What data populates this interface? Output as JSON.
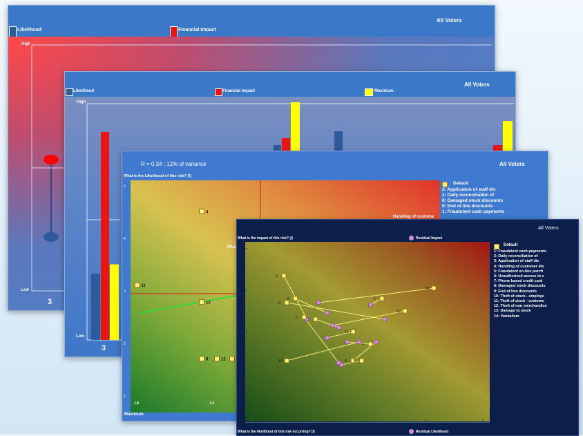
{
  "panel1": {
    "audience": "All Voters",
    "legend": [
      "Likelihood",
      "Financial Impact"
    ],
    "axis_high": "High",
    "axis_low": "Low",
    "category_label": "3",
    "colors": {
      "likelihood": "#2d5b9c",
      "financial_impact": "#e81515"
    }
  },
  "panel2": {
    "audience": "All Voters",
    "legend": [
      "Likelihood",
      "Financial Impact",
      "Maximum"
    ],
    "axis_high": "High",
    "axis_low": "Low",
    "category_label": "3",
    "colors": {
      "likelihood": "#2d5b9c",
      "financial_impact": "#e81515",
      "maximum": "#ffff00"
    }
  },
  "panel3": {
    "correlation": "R = 0.34 : 12% of variance",
    "audience": "All Voters",
    "y_title": "What is the Likelihood of this risk? (I)",
    "x_tick_labels": [
      "1.8",
      "3.3"
    ],
    "y_tick_labels": [
      "5",
      "4",
      "3",
      "2",
      "1"
    ],
    "default_label": "Default",
    "risk_list": [
      "3: Application of staff dis",
      "2: Daily reconciliation of",
      "8: Damaged stock discounts",
      "9: End of line discounts",
      "1: Fraudulent cash payments"
    ],
    "point_labels": {
      "handling": "Handling of custome",
      "phone": "Phon"
    },
    "bottom_label": "Maximum"
  },
  "panel4": {
    "audience": "All Voters",
    "y_title": "What is the impact of this risk? (I)",
    "series_label_top": "Residual Impact",
    "x_title": "What is the likelihood of this risk occurring? (I)",
    "series_label_bottom": "Residual Likelihood",
    "default_label": "Default",
    "risk_list": [
      "1: Fraudulent cash payments",
      "2: Daily reconciliation of",
      "3: Application of staff dis",
      "4: Handling of customer dis",
      "5: Fraudulent on-line purch",
      "6: Unauthorized access to c",
      "7: Phone based credit card",
      "8: Damaged stock discounts",
      "9: End of line discounts",
      "10: Theft of stock - employe",
      "11: Theft of stock - custome",
      "12: Theft of non merchandise",
      "13: Damage to stock",
      "14: Vandalism"
    ]
  },
  "chart_data": [
    {
      "type": "bar",
      "title": "",
      "categories": [
        "3"
      ],
      "series": [
        {
          "name": "Likelihood",
          "values": [
            1
          ]
        },
        {
          "name": "Financial Impact",
          "values": [
            3
          ]
        }
      ],
      "y_axis_labels": [
        "Low",
        "High"
      ]
    },
    {
      "type": "bar",
      "title": "",
      "categories": [
        "3"
      ],
      "series": [
        {
          "name": "Likelihood",
          "values": [
            1.4
          ]
        },
        {
          "name": "Financial Impact",
          "values": [
            4.4
          ]
        },
        {
          "name": "Maximum",
          "values": [
            1.6
          ]
        }
      ],
      "y_axis_labels": [
        "Low",
        "High"
      ]
    },
    {
      "type": "scatter",
      "subtitle": "R = 0.34 : 12% of variance",
      "xlim": [
        1,
        5
      ],
      "ylim": [
        1,
        5
      ],
      "points": [
        {
          "id": "4",
          "x": 1.9,
          "y": 4.5
        },
        {
          "id": "11",
          "x": 1.05,
          "y": 3.2
        },
        {
          "id": "13",
          "x": 1.9,
          "y": 2.9
        },
        {
          "id": "8",
          "x": 1.9,
          "y": 1.9
        },
        {
          "id": "12",
          "x": 2.1,
          "y": 1.9
        },
        {
          "id": "2",
          "x": 2.3,
          "y": 1.9
        }
      ]
    },
    {
      "type": "scatter",
      "series": [
        {
          "name": "Default",
          "points": [
            {
              "id": "3",
              "x": 1.55,
              "y": 4.35
            },
            {
              "id": "14",
              "x": 4.15,
              "y": 4.05
            },
            {
              "id": "2",
              "x": 1.75,
              "y": 3.8
            },
            {
              "id": "5",
              "x": 3.25,
              "y": 3.8
            },
            {
              "id": "9",
              "x": 1.6,
              "y": 3.7
            },
            {
              "id": "13",
              "x": 3.65,
              "y": 3.5
            },
            {
              "id": "7",
              "x": 2.1,
              "y": 3.3
            },
            {
              "id": "11",
              "x": 2.75,
              "y": 3.0
            },
            {
              "id": "4",
              "x": 3.05,
              "y": 2.7
            },
            {
              "id": "12",
              "x": 1.6,
              "y": 2.3
            },
            {
              "id": "8",
              "x": 2.75,
              "y": 2.3
            },
            {
              "id": "1",
              "x": 2.9,
              "y": 2.3
            },
            {
              "id": "6",
              "x": 1.9,
              "y": 3.35
            }
          ]
        },
        {
          "name": "Residual Impact",
          "points": [
            {
              "x": 1.95,
              "y": 3.3
            },
            {
              "x": 2.15,
              "y": 3.7
            },
            {
              "x": 2.3,
              "y": 3.45
            },
            {
              "x": 3.05,
              "y": 3.65
            },
            {
              "x": 3.3,
              "y": 3.3
            },
            {
              "x": 2.4,
              "y": 3.15
            },
            {
              "x": 2.5,
              "y": 3.1
            },
            {
              "x": 2.3,
              "y": 2.85
            },
            {
              "x": 2.65,
              "y": 2.75
            },
            {
              "x": 2.85,
              "y": 2.75
            },
            {
              "x": 3.15,
              "y": 2.75
            },
            {
              "x": 2.55,
              "y": 2.2
            },
            {
              "x": 2.5,
              "y": 2.25
            }
          ]
        }
      ]
    }
  ]
}
